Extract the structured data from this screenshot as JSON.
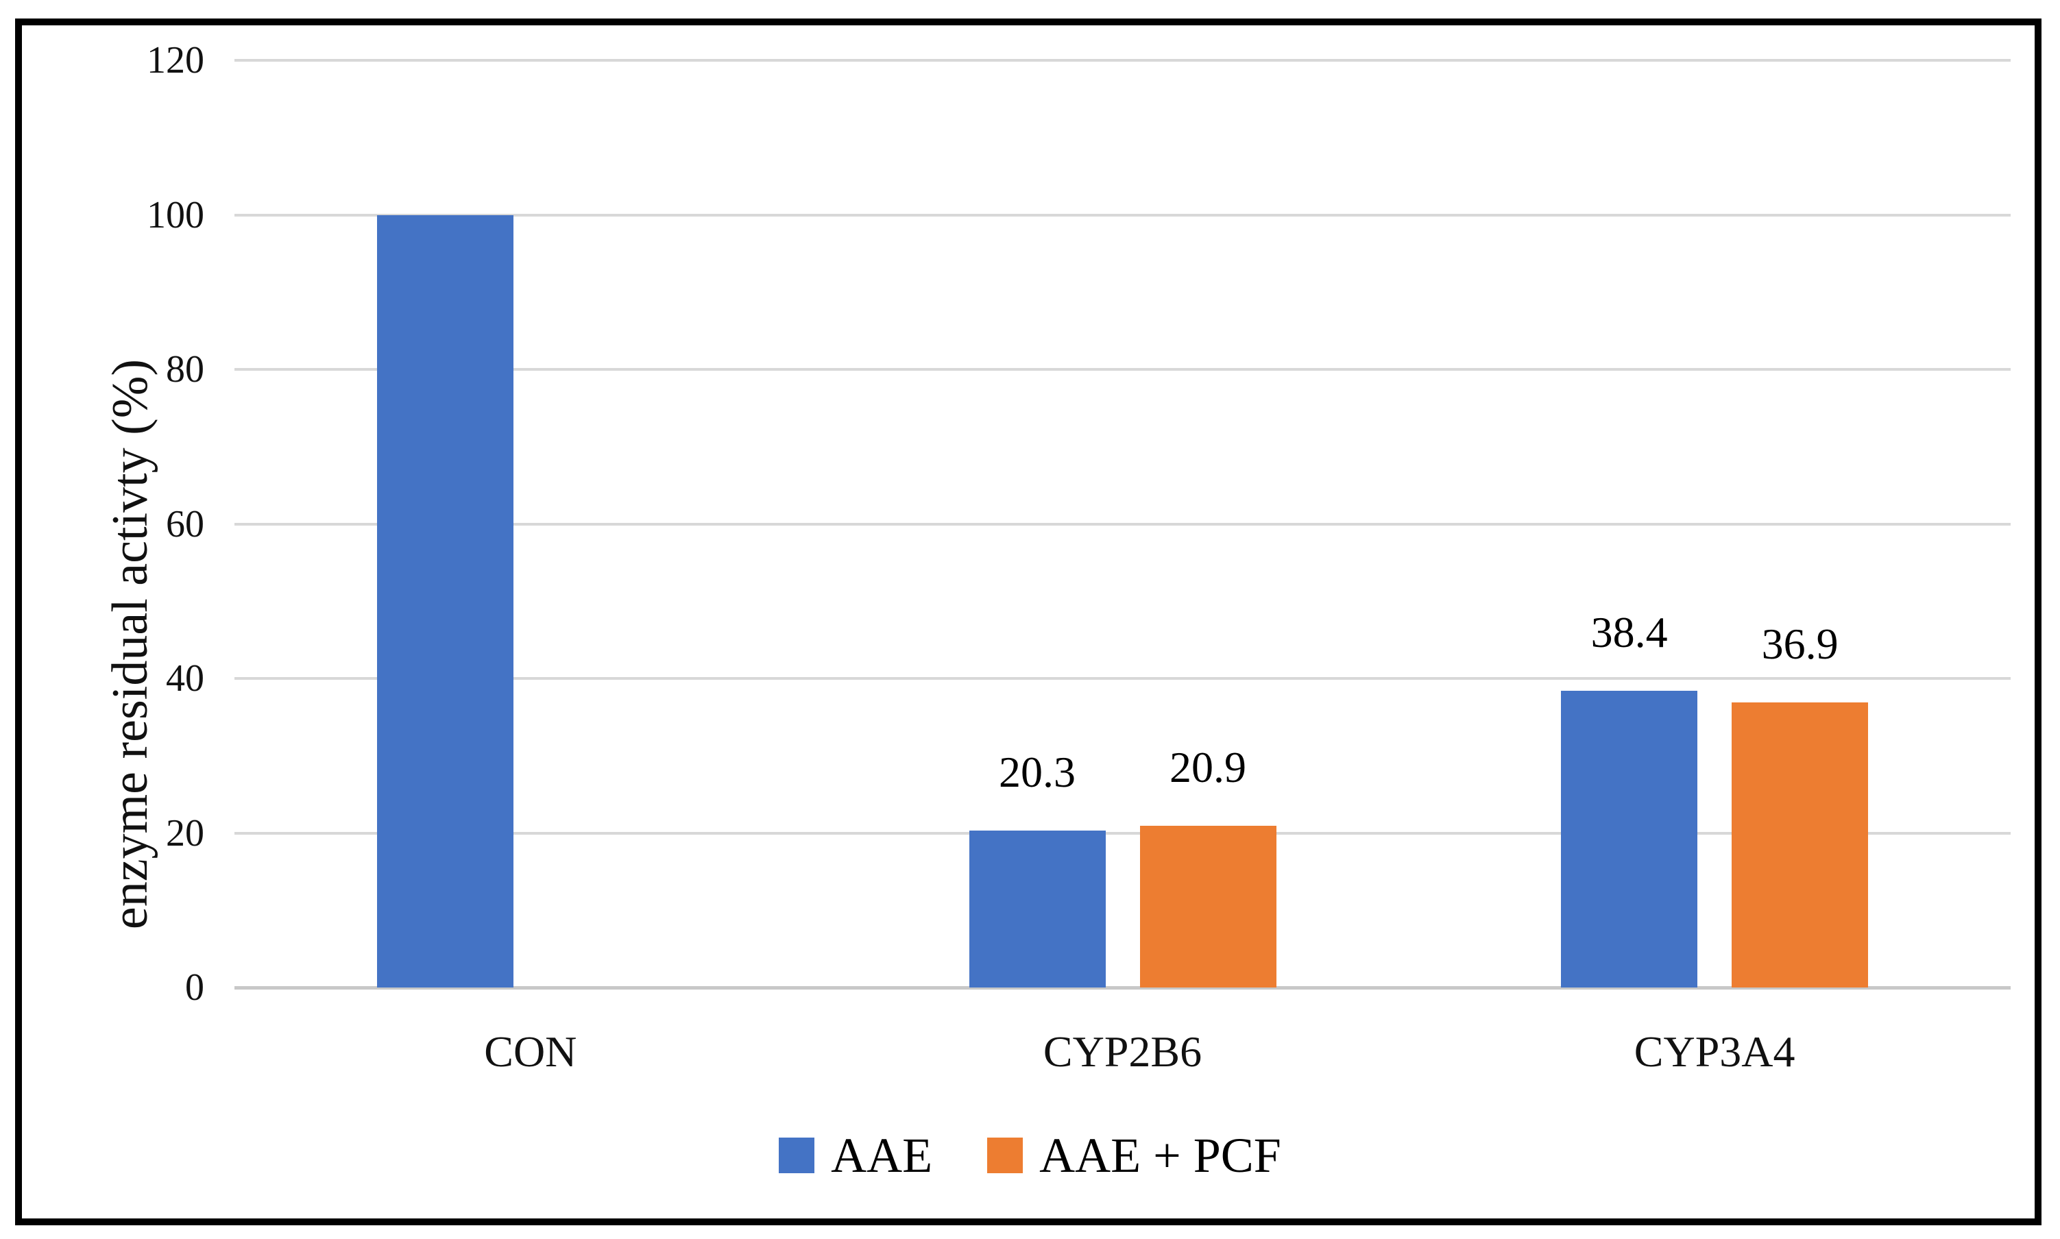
{
  "chart_data": {
    "type": "bar",
    "title": "",
    "categories": [
      "CON",
      "CYP2B6",
      "CYP3A4"
    ],
    "series": [
      {
        "name": "AAE",
        "color": "#4473C5",
        "values": [
          100,
          20.3,
          38.4
        ],
        "data_labels": [
          null,
          "20.3",
          "38.4"
        ]
      },
      {
        "name": "AAE + PCF",
        "color": "#ED7D31",
        "values": [
          null,
          20.9,
          36.9
        ],
        "data_labels": [
          null,
          "20.9",
          "36.9"
        ]
      }
    ],
    "xlabel": "",
    "ylabel": "enzyme residual activty (%)",
    "ylim": [
      0,
      120
    ],
    "yticks": [
      120,
      100,
      80,
      60,
      40,
      20,
      0
    ],
    "grid": true,
    "gridline_color": "#D8D8D8",
    "axis_line_color": "#C8C8C8",
    "text_color": "#111111",
    "border_color": "#000000",
    "legend_position": "bottom"
  }
}
